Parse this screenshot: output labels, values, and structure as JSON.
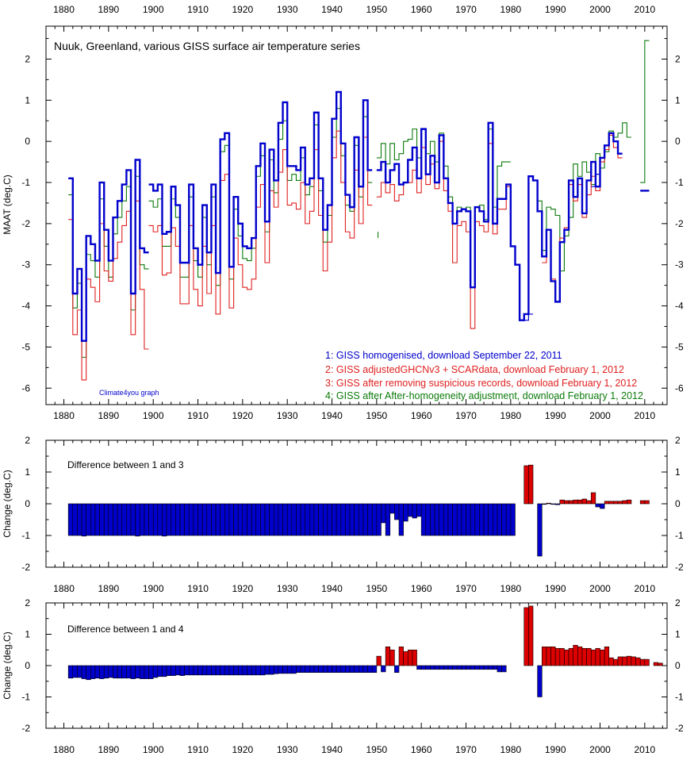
{
  "chart_data": [
    {
      "type": "line",
      "title": "Nuuk, Greenland, various GISS surface air temperature series",
      "ylabel": "MAAT (deg.C)",
      "xlim": [
        1876,
        2015
      ],
      "ylim": [
        -6.4,
        2.8
      ],
      "x_ticks": [
        1880,
        1890,
        1900,
        1910,
        1920,
        1930,
        1940,
        1950,
        1960,
        1970,
        1980,
        1990,
        2000,
        2010
      ],
      "y_ticks": [
        -6,
        -5,
        -4,
        -3,
        -2,
        -1,
        0,
        1,
        2
      ],
      "credit": "Climate4you graph",
      "step": true,
      "series": [
        {
          "name": "1: GISS homogenised, download September 22, 2011",
          "color": "#0000cc",
          "width": 2.4,
          "segments": [
            {
              "start": 1881,
              "values": [
                -0.9,
                -3.7,
                -3.1,
                -4.85,
                -2.3,
                -2.5,
                -2.9,
                -1.0,
                -2.15,
                -2.9,
                -1.85,
                -1.45,
                -1.05,
                -0.7,
                -3.7,
                -0.45,
                -2.6,
                -2.7
              ]
            },
            {
              "start": 1899,
              "values": [
                -1.05,
                -1.2,
                -1.05,
                -2.25,
                -2.2,
                -1.1,
                -1.55,
                -2.95,
                -2.95,
                -1.05,
                -2.6,
                -3.0,
                -1.55,
                -2.7,
                -1.05,
                -3.2,
                0.05,
                0.2,
                -3.05,
                -1.35,
                -2.0,
                -2.55,
                -2.6,
                -2.35,
                -0.6,
                -0.05,
                -1.95,
                -0.2,
                -0.95,
                0.45,
                0.95,
                -0.6,
                -0.6,
                -0.7,
                -0.15,
                -1.05,
                -0.9,
                0.7,
                -0.9,
                -2.15,
                -1.55,
                0.55,
                1.2,
                -0.05,
                -1.3,
                -1.6,
                0.1,
                -1.1,
                1.0,
                -0.7
              ]
            },
            {
              "start": 1950,
              "values": [
                -0.7,
                -0.5,
                -1.0,
                -0.7,
                -0.55,
                -1.05,
                -1.0,
                -0.45,
                -0.15,
                -0.9,
                0.3,
                -0.8,
                -0.35,
                -1.0,
                0.15,
                -0.9,
                -1.5,
                -2.0,
                -1.7,
                -1.65,
                -1.7,
                -3.55,
                -1.6,
                -1.7,
                -1.95,
                0.45,
                -2.0,
                -1.4,
                -1.4,
                -1.05,
                -2.55,
                -3.0,
                -4.35,
                -4.2,
                -0.85,
                -0.95,
                -1.7,
                -2.8,
                -2.15,
                -3.4,
                -3.9,
                -2.45,
                -2.15,
                -0.95,
                -1.35,
                -0.9,
                -1.75,
                -0.95,
                -0.5,
                -1.1,
                -0.4,
                -0.1,
                0.2,
                0.0,
                -0.3
              ]
            },
            {
              "start": 2009,
              "values": [
                -1.2,
                -1.2
              ]
            }
          ]
        },
        {
          "name": "2: GISS adjustedGHCNv3 + SCARdata, download February 1, 2012",
          "color": "#0000cc",
          "width": 1.2,
          "segments": [
            {
              "start": 1983,
              "values": [
                -4.35,
                -4.2
              ]
            },
            {
              "start": 1998,
              "values": [
                -1.1,
                -0.8
              ]
            }
          ]
        },
        {
          "name": "3: GISS after removing suspicious records, download February 1, 2012",
          "color": "#e02020",
          "width": 1.1,
          "segments": [
            {
              "start": 1881,
              "values": [
                -1.9,
                -4.7,
                -4.1,
                -5.8,
                -3.35,
                -3.55,
                -3.9,
                -2.0,
                -3.15,
                -3.4,
                -2.85,
                -2.45,
                -2.05,
                -1.7,
                -4.7,
                -1.45,
                -3.6,
                -5.05
              ]
            },
            {
              "start": 1899,
              "values": [
                -2.05,
                -2.2,
                -2.05,
                -3.25,
                -3.2,
                -2.1,
                -2.55,
                -3.95,
                -3.95,
                -2.05,
                -3.6,
                -4.0,
                -2.55,
                -3.7,
                -2.05,
                -4.2,
                -0.95,
                -0.8,
                -4.05,
                -2.35,
                -3.0,
                -3.55,
                -3.6,
                -3.35,
                -1.6,
                -1.05,
                -2.95,
                -1.2,
                -1.6,
                -0.75,
                -0.2,
                -1.55,
                -1.5,
                -1.65,
                -1.0,
                -2.0,
                -1.7,
                -0.2,
                -1.8,
                -3.15,
                -2.45,
                -0.4,
                0.25,
                -1.0,
                -2.2,
                -2.35,
                -0.7,
                -2.0,
                0.1,
                -1.55
              ]
            },
            {
              "start": 1950,
              "values": [
                -1.35,
                -1.0,
                -1.25,
                -1.05,
                -1.45,
                -1.3,
                -1.0,
                -1.0,
                -0.7,
                -1.25,
                -0.15,
                -1.05,
                -0.55,
                -1.15,
                0.0,
                -1.2,
                -1.7,
                -2.95,
                -2.05,
                -1.95,
                -2.2,
                -4.55,
                -1.95,
                -2.05,
                -2.2,
                -0.05,
                -2.25,
                -1.65,
                -1.65,
                -1.1
              ]
            },
            {
              "start": 1987,
              "values": [
                -2.95,
                -2.15,
                -3.35,
                -3.9,
                -2.35,
                -2.1,
                -1.05,
                -1.45,
                -1.05,
                -1.85,
                -1.3,
                -0.85,
                -1.2,
                -0.5,
                -0.2,
                0.15,
                -0.15,
                -0.4
              ]
            }
          ]
        },
        {
          "name": "4: GISS after After-homogeneity adjustment, download February 1, 2012",
          "color": "#0a7a0a",
          "width": 1.1,
          "segments": [
            {
              "start": 1881,
              "values": [
                -1.3,
                -4.05,
                -3.45,
                -5.25,
                -2.75,
                -2.9,
                -3.3,
                -1.4,
                -2.55,
                -3.3,
                -2.25,
                -1.85,
                -1.45,
                -1.1,
                -4.1,
                -0.85,
                -3.0,
                -3.1
              ]
            },
            {
              "start": 1899,
              "values": [
                -1.45,
                -1.6,
                -1.4,
                -2.55,
                -2.55,
                -1.4,
                -1.85,
                -3.3,
                -3.3,
                -1.35,
                -2.9,
                -3.3,
                -1.85,
                -3.0,
                -1.35,
                -3.5,
                -0.25,
                -0.1,
                -3.35,
                -1.65,
                -2.3,
                -2.85,
                -2.9,
                -2.6,
                -0.85,
                -0.35,
                -2.2,
                -0.45,
                -1.25,
                0.05,
                0.5,
                -0.95,
                -0.8,
                -0.95,
                -0.4,
                -1.3,
                -1.1,
                0.4,
                -1.2,
                -2.45,
                -1.8,
                0.1,
                0.8,
                -0.35,
                -1.55,
                -1.7,
                -0.1,
                -1.35,
                0.6,
                -1.0
              ]
            },
            {
              "start": 1950,
              "values": [
                -0.4,
                -0.05,
                -0.55,
                -0.05,
                -0.45,
                -0.3,
                0.0,
                0.05,
                0.3,
                -0.4,
                0.3,
                -0.3,
                0.0,
                -0.5,
                0.2,
                -0.6,
                -1.35,
                -2.0,
                -1.6,
                -1.65,
                -1.6,
                -3.55,
                -1.6,
                -1.55,
                -1.9,
                0.3,
                -1.6,
                -0.6,
                -0.5,
                -0.5
              ]
            },
            {
              "start": 1986,
              "values": [
                -1.45,
                -2.65,
                -1.6,
                -1.65,
                -1.8,
                -3.15,
                -2.3,
                -1.85,
                -0.55,
                -0.85,
                -0.5,
                -0.75,
                -1.05,
                -0.3,
                -0.65,
                -0.25,
                0.25,
                0.1,
                0.2,
                0.45,
                0.1
              ]
            },
            {
              "start": 2009,
              "values": [
                -1.0,
                2.45
              ]
            }
          ]
        }
      ],
      "extra_lines": [
        {
          "color": "#0a7a0a",
          "width": 1.1,
          "points": [
            [
              1950.3,
              -2.2
            ],
            [
              1950.3,
              -2.35
            ]
          ]
        }
      ]
    },
    {
      "type": "bar",
      "annotation": "Difference between 1 and 3",
      "ylabel": "Change (deg.C)",
      "xlim": [
        1876,
        2015
      ],
      "ylim": [
        -2,
        2
      ],
      "x_ticks": [
        1880,
        1890,
        1900,
        1910,
        1920,
        1930,
        1940,
        1950,
        1960,
        1970,
        1980,
        1990,
        2000,
        2010
      ],
      "y_ticks": [
        -2,
        -1,
        0,
        1,
        2
      ],
      "negative_color": "#0000cc",
      "positive_color": "#dd0000",
      "bars": [
        {
          "start": 1881,
          "values": [
            -1.0,
            -1.0,
            -1.0,
            -1.02,
            -1.0,
            -1.0,
            -1.0,
            -1.0,
            -1.0,
            -1.0,
            -1.0,
            -1.0,
            -1.0,
            -1.0,
            -1.0,
            -1.02,
            -1.0,
            -1.0
          ]
        },
        {
          "start": 1899,
          "values": [
            -1.0,
            -1.0,
            -1.0,
            -1.02,
            -1.0,
            -1.0,
            -1.0,
            -1.0,
            -1.0,
            -1.0,
            -1.0,
            -1.0,
            -1.0,
            -1.0,
            -1.0,
            -1.0,
            -1.0,
            -1.0,
            -1.0,
            -1.0,
            -1.0,
            -1.0,
            -1.0,
            -1.0,
            -1.0,
            -1.0,
            -1.0,
            -1.0,
            -1.0,
            -1.0,
            -1.0,
            -1.0,
            -1.0,
            -1.0,
            -1.0,
            -1.0,
            -1.0,
            -1.0,
            -1.0,
            -1.0,
            -1.0,
            -1.0,
            -1.0,
            -1.0,
            -1.0,
            -1.0,
            -1.0,
            -1.0,
            -1.0,
            -1.0,
            -1.0,
            -1.0,
            -0.6,
            -1.0,
            -0.3,
            -0.5,
            -1.0,
            -0.55,
            -0.4,
            -0.45,
            -0.4,
            -1.0,
            -1.0,
            -1.0,
            -1.0,
            -1.0,
            -1.0,
            -1.0,
            -1.0,
            -1.0,
            -1.0,
            -1.0,
            -1.0,
            -1.0,
            -1.0,
            -1.0,
            -1.0,
            -1.0,
            -1.0,
            -1.0,
            -1.0,
            -1.0
          ]
        },
        {
          "start": 1983,
          "values": [
            1.2,
            1.22,
            0,
            -1.65,
            -0.02,
            0.02,
            -0.02,
            -0.03,
            0.12,
            0.1,
            0.1,
            0.12,
            0.12,
            0.15,
            0.1,
            0.35,
            -0.1,
            -0.15,
            0.08,
            0.08,
            0.08,
            0.08,
            0.1,
            0.12,
            0,
            0,
            0.1,
            0.1
          ]
        }
      ]
    },
    {
      "type": "bar",
      "annotation": "Difference between 1 and 4",
      "ylabel": "Change (deg.C)",
      "xlim": [
        1876,
        2015
      ],
      "ylim": [
        -2,
        2
      ],
      "x_ticks": [
        1880,
        1890,
        1900,
        1910,
        1920,
        1930,
        1940,
        1950,
        1960,
        1970,
        1980,
        1990,
        2000,
        2010
      ],
      "y_ticks": [
        -2,
        -1,
        0,
        1,
        2
      ],
      "negative_color": "#0000cc",
      "positive_color": "#dd0000",
      "bars": [
        {
          "start": 1881,
          "values": [
            -0.4,
            -0.38,
            -0.38,
            -0.42,
            -0.45,
            -0.42,
            -0.4,
            -0.42,
            -0.4,
            -0.38,
            -0.4,
            -0.4,
            -0.4,
            -0.4,
            -0.42,
            -0.4,
            -0.42,
            -0.42
          ]
        },
        {
          "start": 1899,
          "values": [
            -0.42,
            -0.38,
            -0.35,
            -0.35,
            -0.32,
            -0.32,
            -0.3,
            -0.32,
            -0.3,
            -0.3,
            -0.3,
            -0.3,
            -0.3,
            -0.3,
            -0.3,
            -0.3,
            -0.3,
            -0.3,
            -0.3,
            -0.3,
            -0.3,
            -0.3,
            -0.3,
            -0.3,
            -0.3,
            -0.3,
            -0.28,
            -0.28,
            -0.26,
            -0.25,
            -0.25,
            -0.25,
            -0.25,
            -0.22,
            -0.22,
            -0.22,
            -0.22,
            -0.22,
            -0.22,
            -0.22,
            -0.22,
            -0.22,
            -0.22,
            -0.22,
            -0.22,
            -0.22,
            -0.22,
            -0.22,
            -0.22,
            -0.22,
            -0.22,
            0.3,
            -0.2,
            0.6,
            0.5,
            -0.22,
            0.6,
            0.45,
            0.5,
            0.5,
            -0.12,
            -0.12,
            -0.12,
            -0.12,
            -0.12,
            -0.12,
            -0.12,
            -0.12,
            -0.12,
            -0.12,
            -0.12,
            -0.12,
            -0.12,
            -0.12,
            -0.12,
            -0.12,
            -0.12,
            -0.12,
            -0.2,
            -0.2
          ]
        },
        {
          "start": 1983,
          "values": [
            1.85,
            1.9,
            0,
            -1.0,
            0.6,
            0.6,
            0.6,
            0.55,
            0.55,
            0.5,
            0.55,
            0.65,
            0.6,
            0.55,
            0.55,
            0.5,
            0.55,
            0.5,
            0.6,
            0.25,
            0.2,
            0.28,
            0.28,
            0.3,
            0.28,
            0.25,
            0.2,
            0.2,
            0,
            0.1,
            0.08
          ]
        }
      ]
    }
  ]
}
